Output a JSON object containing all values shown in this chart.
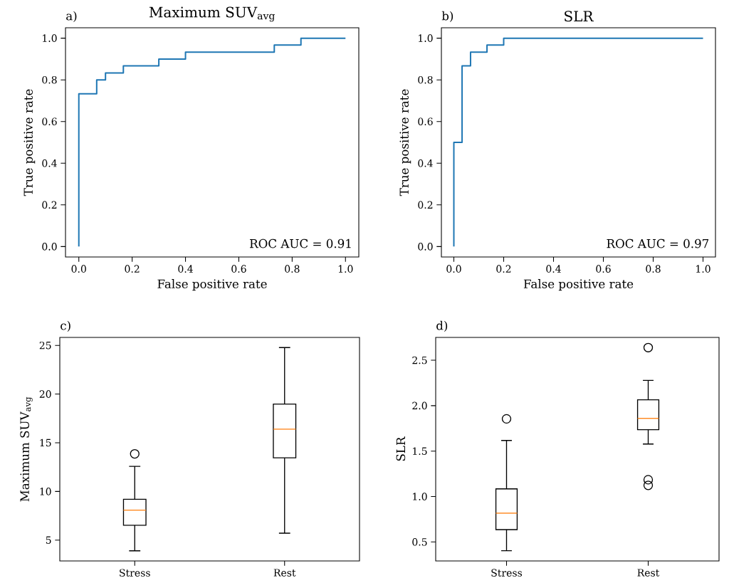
{
  "chart_data": [
    {
      "type": "step",
      "title": "Maximum SUV$_{avg}$",
      "xlabel": "False positive rate",
      "ylabel": "True positive rate",
      "annotations": [
        "a)",
        "ROC AUC = 0.91"
      ],
      "color": "#1f77b4",
      "x": [
        0,
        0,
        0.067,
        0.1,
        0.167,
        0.3,
        0.4,
        0.733,
        0.833,
        1
      ],
      "values": [
        0,
        0.733,
        0.8,
        0.833,
        0.867,
        0.9,
        0.933,
        0.967,
        1,
        1
      ],
      "xlim": [
        -0.05,
        1.05
      ],
      "ylim": [
        -0.05,
        1.05
      ],
      "xticks": [
        {
          "value": 0,
          "label": "0.0"
        },
        {
          "value": 0.2,
          "label": "0.2"
        },
        {
          "value": 0.4,
          "label": "0.4"
        },
        {
          "value": 0.6,
          "label": "0.6"
        },
        {
          "value": 0.8,
          "label": "0.8"
        },
        {
          "value": 1,
          "label": "1.0"
        }
      ],
      "yticks": [
        {
          "value": 0,
          "label": "0.0"
        },
        {
          "value": 0.2,
          "label": "0.2"
        },
        {
          "value": 0.4,
          "label": "0.4"
        },
        {
          "value": 0.6,
          "label": "0.6"
        },
        {
          "value": 0.8,
          "label": "0.8"
        },
        {
          "value": 1,
          "label": "1.0"
        }
      ]
    },
    {
      "type": "step",
      "title": "SLR",
      "xlabel": "False positive rate",
      "ylabel": "True positive rate",
      "annotations": [
        "b)",
        "ROC AUC = 0.97"
      ],
      "color": "#1f77b4",
      "x": [
        0,
        0,
        0.033,
        0.067,
        0.133,
        0.2,
        1
      ],
      "values": [
        0,
        0.5,
        0.867,
        0.933,
        0.967,
        1,
        1
      ],
      "xlim": [
        -0.05,
        1.05
      ],
      "ylim": [
        -0.05,
        1.05
      ],
      "xticks": [
        {
          "value": 0,
          "label": "0.0"
        },
        {
          "value": 0.2,
          "label": "0.2"
        },
        {
          "value": 0.4,
          "label": "0.4"
        },
        {
          "value": 0.6,
          "label": "0.6"
        },
        {
          "value": 0.8,
          "label": "0.8"
        },
        {
          "value": 1,
          "label": "1.0"
        }
      ],
      "yticks": [
        {
          "value": 0,
          "label": "0.0"
        },
        {
          "value": 0.2,
          "label": "0.2"
        },
        {
          "value": 0.4,
          "label": "0.4"
        },
        {
          "value": 0.6,
          "label": "0.6"
        },
        {
          "value": 0.8,
          "label": "0.8"
        },
        {
          "value": 1,
          "label": "1.0"
        }
      ]
    },
    {
      "type": "box",
      "ylabel": "Maximum SUV$_{avg}$",
      "annotations": [
        "c)"
      ],
      "color": "#000000",
      "categories": [
        "Stress",
        "Rest"
      ],
      "boxes": [
        {
          "low": 3.9,
          "q1": 6.52,
          "median": 8.08,
          "q3": 9.2,
          "high": 12.57,
          "outliers": [
            13.86
          ]
        },
        {
          "low": 5.71,
          "q1": 13.45,
          "median": 16.4,
          "q3": 18.97,
          "high": 24.78
        }
      ],
      "ylim": [
        2.86,
        25.82
      ],
      "yticks": [
        5,
        10,
        15,
        20,
        25
      ]
    },
    {
      "type": "box",
      "ylabel": "SLR",
      "annotations": [
        "d)"
      ],
      "color": "#000000",
      "categories": [
        "Stress",
        "Rest"
      ],
      "boxes": [
        {
          "low": 0.404,
          "q1": 0.636,
          "median": 0.817,
          "q3": 1.084,
          "high": 1.617,
          "outliers": [
            1.855
          ]
        },
        {
          "low": 1.578,
          "q1": 1.735,
          "median": 1.86,
          "q3": 2.064,
          "high": 2.278,
          "outliers": [
            2.639,
            1.185,
            1.123
          ]
        }
      ],
      "ylim": [
        0.291,
        2.751
      ],
      "yticks": [
        {
          "value": 0.5,
          "label": "0.5"
        },
        {
          "value": 1,
          "label": "1.0"
        },
        {
          "value": 1.5,
          "label": "1.5"
        },
        {
          "value": 2,
          "label": "2.0"
        },
        {
          "value": 2.5,
          "label": "2.5"
        }
      ]
    }
  ]
}
